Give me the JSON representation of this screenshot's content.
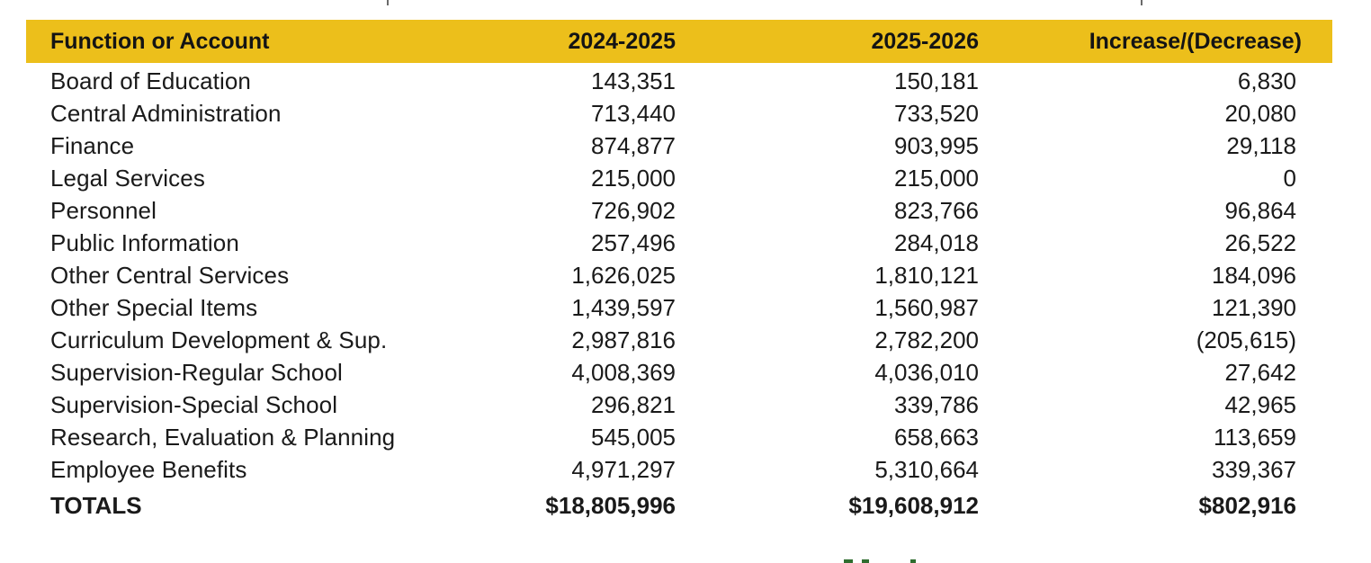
{
  "table": {
    "headers": [
      "Function or Account",
      "2024-2025",
      "2025-2026",
      "Increase/(Decrease)"
    ],
    "rows": [
      {
        "account": "Board of Education",
        "fy2425": "143,351",
        "fy2526": "150,181",
        "change": "6,830"
      },
      {
        "account": "Central Administration",
        "fy2425": "713,440",
        "fy2526": "733,520",
        "change": "20,080"
      },
      {
        "account": "Finance",
        "fy2425": "874,877",
        "fy2526": "903,995",
        "change": "29,118"
      },
      {
        "account": "Legal Services",
        "fy2425": "215,000",
        "fy2526": "215,000",
        "change": "0"
      },
      {
        "account": "Personnel",
        "fy2425": "726,902",
        "fy2526": "823,766",
        "change": "96,864"
      },
      {
        "account": "Public Information",
        "fy2425": "257,496",
        "fy2526": "284,018",
        "change": "26,522"
      },
      {
        "account": "Other Central Services",
        "fy2425": "1,626,025",
        "fy2526": "1,810,121",
        "change": "184,096"
      },
      {
        "account": "Other Special Items",
        "fy2425": "1,439,597",
        "fy2526": "1,560,987",
        "change": "121,390"
      },
      {
        "account": "Curriculum Development & Sup.",
        "fy2425": "2,987,816",
        "fy2526": "2,782,200",
        "change": "(205,615)"
      },
      {
        "account": "Supervision-Regular School",
        "fy2425": "4,008,369",
        "fy2526": "4,036,010",
        "change": "27,642"
      },
      {
        "account": "Supervision-Special School",
        "fy2425": "296,821",
        "fy2526": "339,786",
        "change": "42,965"
      },
      {
        "account": "Research, Evaluation & Planning",
        "fy2425": "545,005",
        "fy2526": "658,663",
        "change": "113,659"
      },
      {
        "account": "Employee Benefits",
        "fy2425": "4,971,297",
        "fy2526": "5,310,664",
        "change": "339,367"
      }
    ],
    "totals": {
      "label": "TOTALS",
      "fy2425": "$18,805,996",
      "fy2526": "$19,608,912",
      "change": "$802,916"
    }
  },
  "colors": {
    "header_bg": "#ecbf1b",
    "text": "#1a1a1a"
  }
}
